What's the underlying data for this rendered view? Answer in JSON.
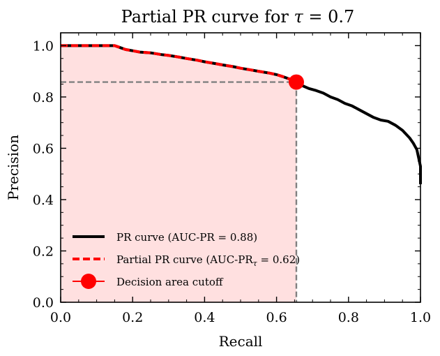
{
  "chart_data": {
    "type": "line",
    "title": "Partial PR curve for τ = 0.7",
    "xlabel": "Recall",
    "ylabel": "Precision",
    "xlim": [
      0.0,
      1.0
    ],
    "ylim": [
      0.0,
      1.05
    ],
    "xticks": [
      0.0,
      0.2,
      0.4,
      0.6,
      0.8,
      1.0
    ],
    "xtick_labels": [
      "0.0",
      "0.2",
      "0.4",
      "0.6",
      "0.8",
      "1.0"
    ],
    "yticks": [
      0.0,
      0.2,
      0.4,
      0.6,
      0.8,
      1.0
    ],
    "ytick_labels": [
      "0.0",
      "0.2",
      "0.4",
      "0.6",
      "0.8",
      "1.0"
    ],
    "series": [
      {
        "name": "PR curve (AUC-PR = 0.88)",
        "style": "solid",
        "color": "#000000",
        "x": [
          0.0,
          0.05,
          0.1,
          0.15,
          0.16,
          0.18,
          0.2,
          0.22,
          0.25,
          0.28,
          0.3,
          0.33,
          0.35,
          0.38,
          0.4,
          0.43,
          0.45,
          0.48,
          0.5,
          0.53,
          0.55,
          0.58,
          0.6,
          0.62,
          0.64,
          0.655,
          0.67,
          0.69,
          0.71,
          0.73,
          0.75,
          0.77,
          0.79,
          0.81,
          0.83,
          0.85,
          0.87,
          0.89,
          0.91,
          0.93,
          0.95,
          0.96,
          0.97,
          0.98,
          0.99,
          1.0,
          1.0
        ],
        "y": [
          1.0,
          1.0,
          1.0,
          1.0,
          0.995,
          0.985,
          0.98,
          0.975,
          0.972,
          0.965,
          0.962,
          0.955,
          0.95,
          0.943,
          0.937,
          0.93,
          0.925,
          0.918,
          0.912,
          0.905,
          0.9,
          0.893,
          0.887,
          0.878,
          0.868,
          0.858,
          0.845,
          0.833,
          0.825,
          0.815,
          0.8,
          0.79,
          0.775,
          0.765,
          0.75,
          0.735,
          0.72,
          0.71,
          0.705,
          0.69,
          0.67,
          0.655,
          0.64,
          0.62,
          0.595,
          0.53,
          0.46
        ]
      },
      {
        "name": "Partial PR curve (AUC-PRτ = 0.62)",
        "style": "dashed",
        "color": "#ff0000",
        "x": [
          0.0,
          0.05,
          0.1,
          0.15,
          0.16,
          0.18,
          0.2,
          0.22,
          0.25,
          0.28,
          0.3,
          0.33,
          0.35,
          0.38,
          0.4,
          0.43,
          0.45,
          0.48,
          0.5,
          0.53,
          0.55,
          0.58,
          0.6,
          0.62,
          0.64,
          0.655
        ],
        "y": [
          1.0,
          1.0,
          1.0,
          1.0,
          0.995,
          0.985,
          0.98,
          0.975,
          0.972,
          0.965,
          0.962,
          0.955,
          0.95,
          0.943,
          0.937,
          0.93,
          0.925,
          0.918,
          0.912,
          0.905,
          0.9,
          0.893,
          0.887,
          0.878,
          0.868,
          0.858
        ]
      }
    ],
    "cutoff": {
      "name": "Decision area cutoff",
      "x": 0.655,
      "y": 0.858,
      "color": "#ff0000"
    },
    "shaded_area": {
      "color": "#ffe0e0",
      "x_end": 0.655
    },
    "legend": {
      "placement": "lower-left",
      "entries": [
        {
          "text": "PR curve (AUC-PR = 0.88)"
        },
        {
          "prefix": "Partial PR curve (AUC-PR",
          "subscript": "τ",
          "suffix": " = 0.62)"
        },
        {
          "text": "Decision area cutoff"
        }
      ]
    },
    "title_parts": {
      "prefix": "Partial PR curve for ",
      "symbol": "τ",
      "suffix": " = 0.7"
    }
  }
}
